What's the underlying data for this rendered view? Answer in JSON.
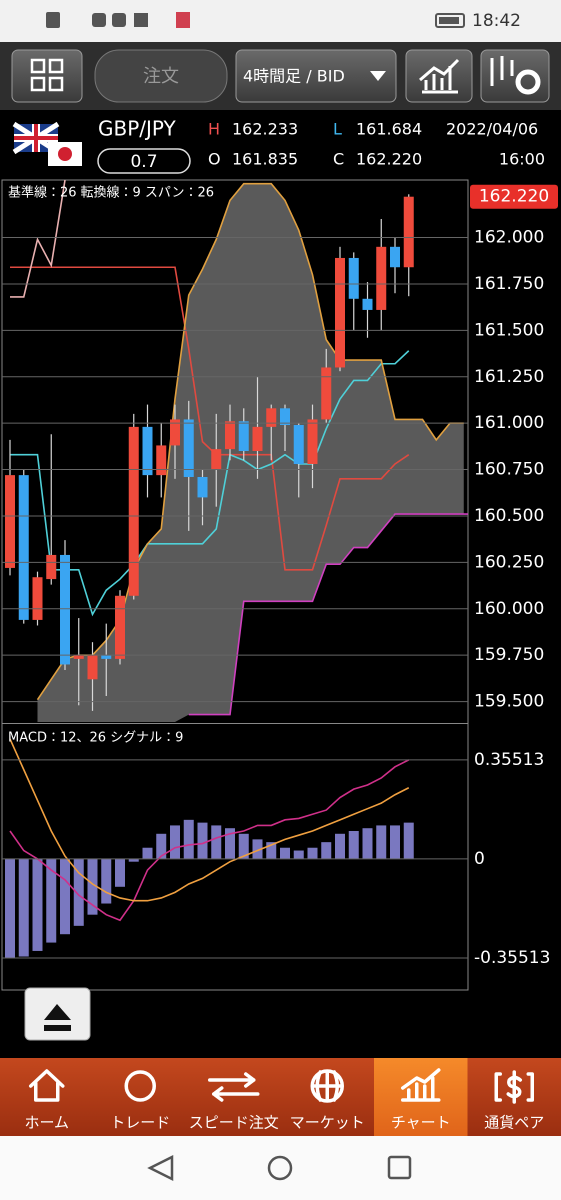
{
  "status_bar": {
    "time": "18:42"
  },
  "toolbar": {
    "order": "注文",
    "timeframe": "4時間足 / BID"
  },
  "quote": {
    "pair": "GBP/JPY",
    "lot": "0.7",
    "date": "2022/04/06",
    "time": "16:00",
    "high": {
      "label": "H",
      "value": "162.233"
    },
    "low": {
      "label": "L",
      "value": "161.684"
    },
    "open": {
      "label": "O",
      "value": "161.835"
    },
    "close": {
      "label": "C",
      "value": "162.220"
    }
  },
  "chart_data": [
    {
      "type": "candlestick",
      "up_color": "#ef4b3c",
      "down_color": "#3aa5f2",
      "wick_color": "#d8d8d8",
      "cloud_color": "#6a6a6a",
      "ylim": [
        159.39,
        162.31
      ],
      "yticks": [
        {
          "value": 162,
          "label": "162.000"
        },
        {
          "value": 161.75,
          "label": "161.750"
        },
        {
          "value": 161.5,
          "label": "161.500"
        },
        {
          "value": 161.25,
          "label": "161.250"
        },
        {
          "value": 161,
          "label": "161.000"
        },
        {
          "value": 160.75,
          "label": "160.750"
        },
        {
          "value": 160.5,
          "label": "160.500"
        },
        {
          "value": 160.25,
          "label": "160.250"
        },
        {
          "value": 160,
          "label": "160.000"
        },
        {
          "value": 159.75,
          "label": "159.750"
        },
        {
          "value": 159.5,
          "label": "159.500"
        }
      ],
      "grid": true,
      "last_price": {
        "value": 162.22,
        "label": "162.220"
      },
      "last_price_color": "#e8302a",
      "span_label": "スパン：26",
      "span_color": "#8fb8c8",
      "candles": [
        {
          "open": 160.22,
          "high": 160.91,
          "low": 160.18,
          "close": 160.72
        },
        {
          "open": 160.72,
          "high": 160.75,
          "low": 159.92,
          "close": 159.94
        },
        {
          "open": 159.94,
          "high": 160.2,
          "low": 159.91,
          "close": 160.17
        },
        {
          "open": 160.16,
          "high": 160.94,
          "low": 160.13,
          "close": 160.29
        },
        {
          "open": 160.29,
          "high": 160.37,
          "low": 159.67,
          "close": 159.7
        },
        {
          "open": 159.73,
          "high": 159.95,
          "low": 159.48,
          "close": 159.75
        },
        {
          "open": 159.62,
          "high": 159.82,
          "low": 159.45,
          "close": 159.75
        },
        {
          "open": 159.75,
          "high": 159.92,
          "low": 159.53,
          "close": 159.73
        },
        {
          "open": 159.73,
          "high": 160.1,
          "low": 159.7,
          "close": 160.07
        },
        {
          "open": 160.07,
          "high": 161.05,
          "low": 160.05,
          "close": 160.98
        },
        {
          "open": 160.98,
          "high": 161.1,
          "low": 160.6,
          "close": 160.72
        },
        {
          "open": 160.72,
          "high": 161,
          "low": 160.6,
          "close": 160.88
        },
        {
          "open": 160.88,
          "high": 161.1,
          "low": 160.7,
          "close": 161.02
        },
        {
          "open": 161.02,
          "high": 161.12,
          "low": 160.42,
          "close": 160.71
        },
        {
          "open": 160.71,
          "high": 160.75,
          "low": 160.45,
          "close": 160.6
        },
        {
          "open": 160.75,
          "high": 161.05,
          "low": 160.55,
          "close": 160.86
        },
        {
          "open": 160.86,
          "high": 161.1,
          "low": 160.8,
          "close": 161.01
        },
        {
          "open": 161.01,
          "high": 161.08,
          "low": 160.8,
          "close": 160.85
        },
        {
          "open": 160.85,
          "high": 161.25,
          "low": 160.7,
          "close": 160.98
        },
        {
          "open": 160.98,
          "high": 161.1,
          "low": 160.8,
          "close": 161.08
        },
        {
          "open": 161.08,
          "high": 161.1,
          "low": 160.85,
          "close": 160.99
        },
        {
          "open": 160.99,
          "high": 161,
          "low": 160.6,
          "close": 160.78
        },
        {
          "open": 160.78,
          "high": 161.1,
          "low": 160.65,
          "close": 161.02
        },
        {
          "open": 161.02,
          "high": 161.4,
          "low": 161,
          "close": 161.3
        },
        {
          "open": 161.3,
          "high": 161.95,
          "low": 161.28,
          "close": 161.89
        },
        {
          "open": 161.89,
          "high": 161.92,
          "low": 161.5,
          "close": 161.67
        },
        {
          "open": 161.67,
          "high": 161.76,
          "low": 161.46,
          "close": 161.61
        },
        {
          "open": 161.61,
          "high": 162.1,
          "low": 161.5,
          "close": 161.95
        },
        {
          "open": 161.95,
          "high": 162,
          "low": 161.7,
          "close": 161.84
        },
        {
          "open": 161.84,
          "high": 162.233,
          "low": 161.684,
          "close": 162.22
        }
      ],
      "series": [
        {
          "name": "基準線：26",
          "color": "#e04a40",
          "values": [
            161.84,
            161.84,
            161.84,
            161.84,
            161.84,
            161.84,
            161.84,
            161.84,
            161.84,
            161.84,
            161.84,
            161.84,
            161.84,
            161.4,
            160.9,
            160.83,
            160.83,
            160.83,
            160.83,
            160.83,
            160.21,
            160.21,
            160.21,
            160.45,
            160.7,
            160.7,
            160.7,
            160.7,
            160.78,
            160.83
          ]
        },
        {
          "name": "転換線：9",
          "color": "#4fd0d8",
          "values": [
            160.83,
            160.83,
            160.83,
            160.21,
            160.21,
            160.21,
            159.97,
            160.1,
            160.16,
            160.24,
            160.35,
            160.35,
            160.35,
            160.35,
            160.35,
            160.43,
            160.83,
            160.8,
            160.75,
            160.78,
            160.83,
            160.78,
            160.78,
            160.97,
            161.13,
            161.23,
            161.23,
            161.32,
            161.32,
            161.39
          ]
        },
        {
          "color": "#e0a040",
          "values": [
            null,
            null,
            159.51,
            159.62,
            159.73,
            159.75,
            159.75,
            159.83,
            159.94,
            160.21,
            160.35,
            160.43,
            161.13,
            161.69,
            161.83,
            161.99,
            162.2,
            162.29,
            162.29,
            162.29,
            162.2,
            162.04,
            161.8,
            161.45,
            161.34,
            161.34,
            161.34,
            161.34,
            161.02,
            161.02,
            161.02,
            160.91,
            161,
            161
          ]
        },
        {
          "color": "#d040c0",
          "values": [
            null,
            null,
            null,
            null,
            null,
            null,
            null,
            null,
            null,
            null,
            null,
            null,
            null,
            159.43,
            159.43,
            159.43,
            159.43,
            160.04,
            160.04,
            160.04,
            160.04,
            160.04,
            160.04,
            160.24,
            160.24,
            160.33,
            160.33,
            160.42,
            160.51,
            160.51,
            160.51,
            160.51,
            160.51,
            160.51,
            160.51
          ]
        },
        {
          "color": "#e8b0b0",
          "values": [
            161.68,
            161.68,
            161.99,
            161.85,
            162.31
          ]
        }
      ]
    },
    {
      "type": "macd",
      "ylim": [
        -0.47,
        0.48
      ],
      "yticks": [
        0.35513,
        0,
        -0.35513
      ],
      "grid": true,
      "histogram_color": "#7a78c0",
      "histogram": [
        -0.355,
        -0.35,
        -0.33,
        -0.3,
        -0.27,
        -0.24,
        -0.2,
        -0.16,
        -0.1,
        -0.01,
        0.04,
        0.09,
        0.12,
        0.14,
        0.13,
        0.12,
        0.11,
        0.09,
        0.07,
        0.06,
        0.04,
        0.03,
        0.04,
        0.06,
        0.09,
        0.1,
        0.11,
        0.12,
        0.12,
        0.13
      ],
      "series": [
        {
          "name": "MACD：12、26",
          "color": "#d0308a",
          "values": [
            0.1,
            0.03,
            0,
            -0.04,
            -0.075,
            -0.13,
            -0.165,
            -0.2,
            -0.22,
            -0.15,
            -0.04,
            0.01,
            0.04,
            0.05,
            0.055,
            0.075,
            0.09,
            0.1,
            0.12,
            0.12,
            0.14,
            0.145,
            0.16,
            0.175,
            0.22,
            0.25,
            0.265,
            0.29,
            0.33,
            0.355
          ]
        },
        {
          "name": "シグナル：9",
          "color": "#f0a040",
          "values": [
            0.43,
            0.32,
            0.21,
            0.1,
            0.01,
            -0.05,
            -0.09,
            -0.12,
            -0.14,
            -0.15,
            -0.15,
            -0.14,
            -0.12,
            -0.09,
            -0.07,
            -0.04,
            -0.01,
            0.01,
            0.03,
            0.05,
            0.07,
            0.085,
            0.1,
            0.12,
            0.14,
            0.16,
            0.18,
            0.2,
            0.23,
            0.255
          ]
        }
      ]
    }
  ],
  "nav": {
    "items": [
      "ホーム",
      "トレード",
      "スピード注文",
      "マーケット",
      "チャート",
      "通貨ペア"
    ],
    "active": 4
  }
}
